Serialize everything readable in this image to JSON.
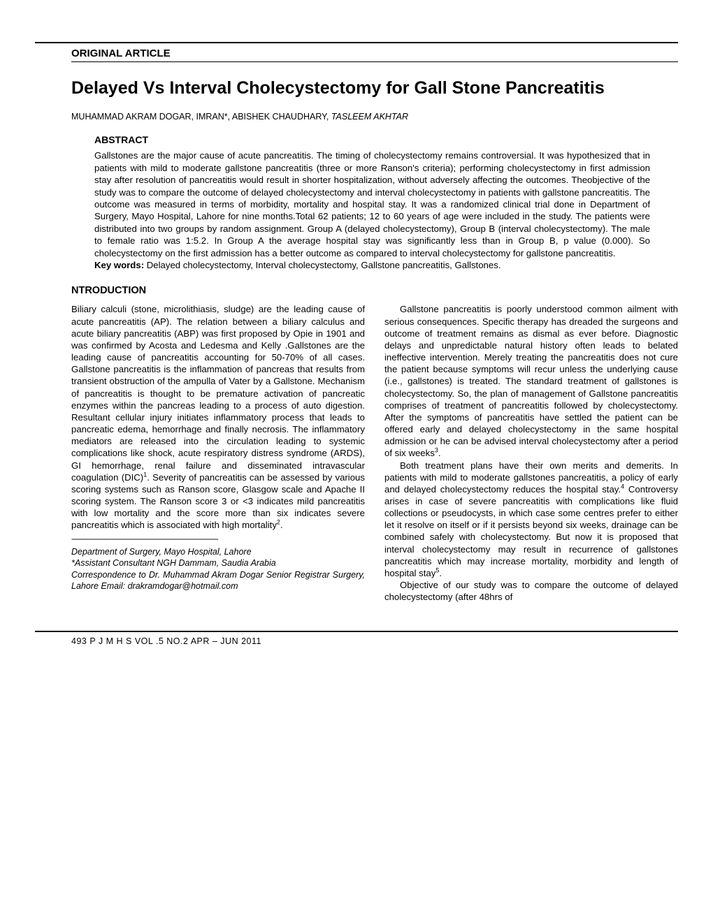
{
  "section_label": "ORIGINAL ARTICLE",
  "title": "Delayed Vs Interval Cholecystectomy for Gall Stone Pancreatitis",
  "authors_plain": "MUHAMMAD AKRAM DOGAR, IMRAN*, ABISHEK CHAUDHARY, ",
  "authors_italic": "TASLEEM AKHTAR",
  "abstract_heading": "ABSTRACT",
  "abstract_body": "Gallstones are the major cause of acute pancreatitis. The timing of cholecystectomy remains controversial. It was hypothesized that in patients with mild to moderate gallstone pancreatitis (three or more Ranson's criteria); performing cholecystectomy  in first admission stay after resolution of pancreatitis would result in shorter hospitalization, without adversely affecting the outcomes. Theobjective of the study was to compare the outcome of delayed cholecystectomy and interval cholecystectomy in patients with gallstone pancreatitis. The outcome was measured in terms of morbidity, mortality and hospital stay. It was a randomized clinical trial done in Department of Surgery, Mayo Hospital, Lahore for nine months.Total 62 patients; 12 to 60 years of age were included in the study. The patients were distributed into two groups by random assignment. Group A (delayed cholecystectomy), Group B (interval cholecystectomy).  The male to female ratio was 1:5.2. In Group A the average hospital stay was significantly less than in Group B, p value (0.000). So cholecystectomy on the first admission has a better outcome as compared to interval cholecystectomy for gallstone pancreatitis.",
  "keywords_label": "Key words:",
  "keywords_text": " Delayed cholecystectomy, Interval cholecystectomy, Gallstone pancreatitis, Gallstones.",
  "intro_heading": "NTRODUCTION",
  "col1": {
    "p1a": "Biliary calculi (stone, microlithiasis, sludge) are the leading cause of acute pancreatitis (AP). The relation between a biliary calculus and acute biliary pancreatitis (ABP) was first proposed by Opie in 1901 and was confirmed by Acosta and Ledesma and Kelly .Gallstones are the leading cause of pancreatitis accounting for 50-70% of all cases. Gallstone pancreatitis is the inflammation of pancreas that results from transient obstruction of the ampulla of Vater by a Gallstone. Mechanism of pancreatitis is thought to be premature activation of pancreatic enzymes within the pancreas leading to a process of auto digestion. Resultant cellular injury initiates inflammatory process that leads to pancreatic edema, hemorrhage and finally necrosis. The inflammatory mediators are released into the circulation leading to systemic complications like shock, acute respiratory distress syndrome (ARDS), GI hemorrhage, renal failure and disseminated intravascular coagulation (DIC)",
    "sup1": "1",
    "p1b": ". Severity of pancreatitis can be assessed by various scoring systems such as Ranson score, Glasgow scale and Apache II scoring system. The Ranson score 3 or <3 indicates mild pancreatitis with low mortality and the score more than six indicates severe pancreatitis which is associated with high mortality",
    "sup2": "2",
    "p1c": "."
  },
  "affil": {
    "line1": "Department of Surgery, Mayo Hospital, Lahore",
    "line2": "*Assistant Consultant NGH Dammam, Saudia Arabia",
    "line3": "Correspondence to Dr. Muhammad Akram Dogar Senior Registrar Surgery, Lahore Email: drakramdogar@hotmail.com"
  },
  "col2": {
    "p1a": "Gallstone pancreatitis is poorly understood common ailment with serious consequences. Specific therapy has dreaded the surgeons and outcome of treatment remains as dismal as ever before. Diagnostic delays and unpredictable natural history often leads to belated ineffective intervention. Merely treating the pancreatitis does not cure the patient because symptoms will recur unless the underlying cause (i.e., gallstones) is treated. The standard treatment of gallstones is cholecystectomy. So, the plan of management of Gallstone pancreatitis comprises of treatment of pancreatitis followed by cholecystectomy. After the symptoms of pancreatitis have settled the patient can be offered early and delayed cholecystectomy in the same hospital admission or he can be advised interval cholecystectomy after a period of six weeks",
    "sup1": "3",
    "p1b": ".",
    "p2a": "Both treatment plans have their own merits and demerits. In patients with mild to moderate gallstones pancreatitis, a policy of early and delayed cholecystectomy reduces the hospital stay.",
    "sup2": "4",
    "p2b": " Controversy arises in case of severe pancreatitis with complications like fluid collections or pseudocysts, in which case some centres prefer to either let it resolve on itself or if it persists beyond six weeks, drainage can be combined safely with cholecystectomy. But now it is proposed that interval cholecystectomy may result in recurrence of gallstones pancreatitis which may increase mortality, morbidity and length of hospital stay",
    "sup3": "5",
    "p2c": ".",
    "p3": "Objective of our study was to compare the outcome of delayed cholecystectomy (after 48hrs of"
  },
  "footer": "493   P J M H S  VOL .5  NO.2  APR – JUN  2011"
}
